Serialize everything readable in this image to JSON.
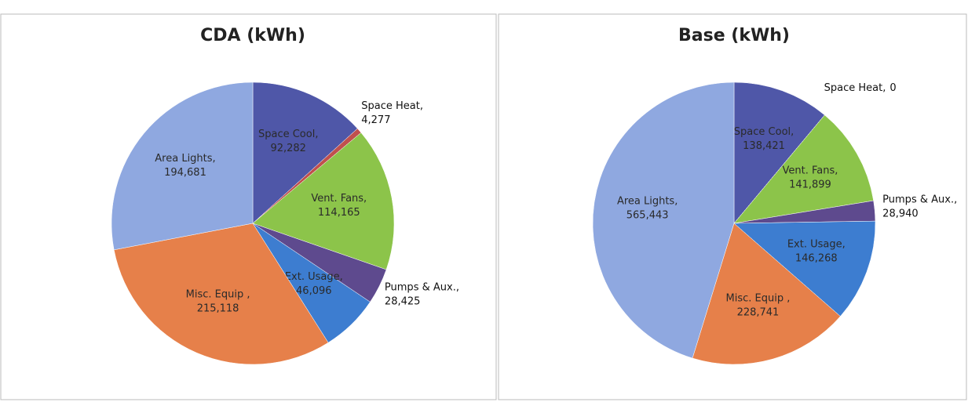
{
  "chart_data": [
    {
      "type": "pie",
      "title": "CDA (kWh)",
      "categories": [
        "Space Cool,",
        "Space Heat,",
        "Vent. Fans,",
        "Pumps & Aux.,",
        "Ext. Usage,",
        "Misc. Equip ,",
        "Area Lights,"
      ],
      "values": [
        92282,
        4277,
        114165,
        28425,
        46096,
        215118,
        194681
      ],
      "value_labels": [
        "92,282",
        "4,277",
        "114,165",
        "28,425",
        "46,096",
        "215,118",
        "194,681"
      ],
      "colors": [
        "#4f57a8",
        "#c0504d",
        "#8cc44a",
        "#5e4a8e",
        "#3d7dd0",
        "#e6804a",
        "#8fa8e0"
      ]
    },
    {
      "type": "pie",
      "title": "Base (kWh)",
      "categories": [
        "Space Cool,",
        "Space Heat,",
        "Vent. Fans,",
        "Pumps & Aux.,",
        "Ext. Usage,",
        "Misc. Equip ,",
        "Area Lights,"
      ],
      "values": [
        138421,
        0,
        141899,
        28940,
        146268,
        228741,
        565443
      ],
      "value_labels": [
        "138,421",
        "0",
        "141,899",
        "28,940",
        "146,268",
        "228,741",
        "565,443"
      ],
      "colors": [
        "#4f57a8",
        "#c0504d",
        "#8cc44a",
        "#5e4a8e",
        "#3d7dd0",
        "#e6804a",
        "#8fa8e0"
      ]
    }
  ]
}
